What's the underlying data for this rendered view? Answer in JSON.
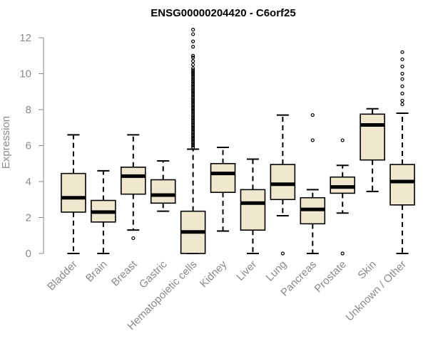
{
  "chart_data": {
    "type": "box",
    "title": "ENSG00000204420 - C6orf25",
    "xlabel": "",
    "ylabel": "Expression",
    "ylim": [
      0,
      12
    ],
    "yticks": [
      0,
      2,
      4,
      6,
      8,
      10,
      12
    ],
    "grid": false,
    "colors": {
      "box_fill": "#efe8cf",
      "stroke": "#000000",
      "axis": "#8a8a8a"
    },
    "categories": [
      "Bladder",
      "Brain",
      "Breast",
      "Gastric",
      "Hematopoietic cells",
      "Kidney",
      "Liver",
      "Lung",
      "Pancreas",
      "Prostate",
      "Skin",
      "Unknown / Other"
    ],
    "boxes": [
      {
        "category": "Bladder",
        "min": 0,
        "q1": 2.3,
        "median": 3.1,
        "q3": 4.45,
        "max": 6.6,
        "outliers": []
      },
      {
        "category": "Brain",
        "min": 0,
        "q1": 1.75,
        "median": 2.3,
        "q3": 2.95,
        "max": 4.6,
        "outliers": []
      },
      {
        "category": "Breast",
        "min": 1.3,
        "q1": 3.3,
        "median": 4.3,
        "q3": 4.8,
        "max": 6.6,
        "outliers": [
          0.85
        ]
      },
      {
        "category": "Gastric",
        "min": 2.35,
        "q1": 2.8,
        "median": 3.25,
        "q3": 4.1,
        "max": 5.15,
        "outliers": []
      },
      {
        "category": "Hematopoietic cells",
        "min": 0,
        "q1": 0,
        "median": 1.2,
        "q3": 2.35,
        "max": 5.8,
        "outliers": [
          5.9,
          6.0,
          6.1,
          6.2,
          6.3,
          6.4,
          6.5,
          6.6,
          6.7,
          6.8,
          6.9,
          7.0,
          7.1,
          7.2,
          7.3,
          7.4,
          7.5,
          7.6,
          7.7,
          7.8,
          7.9,
          8.0,
          8.1,
          8.2,
          8.3,
          8.4,
          8.5,
          8.6,
          8.7,
          8.8,
          8.9,
          9.0,
          9.1,
          9.2,
          9.3,
          9.4,
          9.5,
          9.6,
          9.7,
          9.8,
          9.9,
          10.0,
          10.1,
          10.2,
          10.3,
          10.5,
          10.7,
          10.9,
          11.0,
          11.5,
          11.8,
          12.2,
          12.45
        ]
      },
      {
        "category": "Kidney",
        "min": 1.25,
        "q1": 3.4,
        "median": 4.45,
        "q3": 5.0,
        "max": 5.9,
        "outliers": []
      },
      {
        "category": "Liver",
        "min": 0,
        "q1": 1.3,
        "median": 2.8,
        "q3": 3.55,
        "max": 5.25,
        "outliers": []
      },
      {
        "category": "Lung",
        "min": 2.1,
        "q1": 3.0,
        "median": 3.85,
        "q3": 4.95,
        "max": 7.7,
        "outliers": [
          0
        ]
      },
      {
        "category": "Pancreas",
        "min": 0,
        "q1": 1.65,
        "median": 2.45,
        "q3": 3.1,
        "max": 3.55,
        "outliers": [
          6.3,
          7.7
        ]
      },
      {
        "category": "Prostate",
        "min": 2.25,
        "q1": 3.35,
        "median": 3.7,
        "q3": 4.25,
        "max": 4.9,
        "outliers": [
          0,
          6.3
        ]
      },
      {
        "category": "Skin",
        "min": 3.45,
        "q1": 5.2,
        "median": 7.15,
        "q3": 7.75,
        "max": 8.05,
        "outliers": []
      },
      {
        "category": "Unknown / Other",
        "min": 0,
        "q1": 2.7,
        "median": 4.0,
        "q3": 4.95,
        "max": 7.8,
        "outliers": [
          8.3,
          8.5,
          8.9,
          9.3,
          9.7,
          10.0,
          10.4,
          10.8,
          11.2
        ]
      }
    ]
  }
}
